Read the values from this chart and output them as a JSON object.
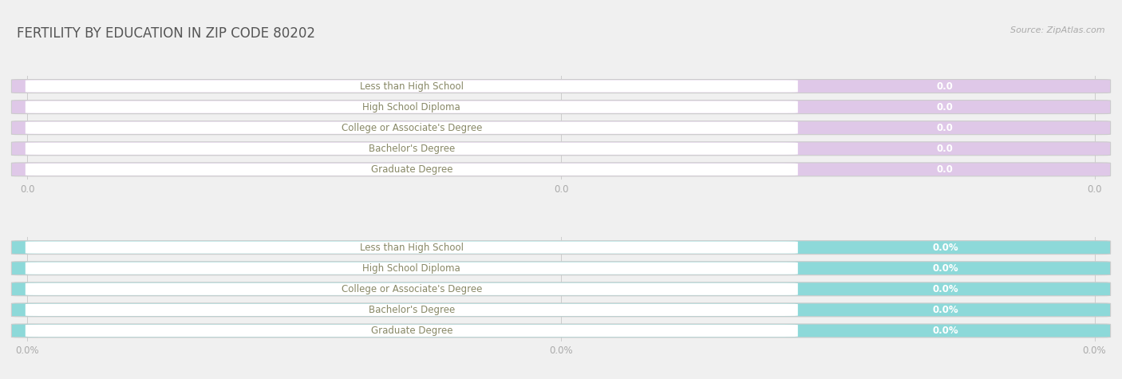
{
  "title": "FERTILITY BY EDUCATION IN ZIP CODE 80202",
  "source_text": "Source: ZipAtlas.com",
  "categories": [
    "Less than High School",
    "High School Diploma",
    "College or Associate's Degree",
    "Bachelor's Degree",
    "Graduate Degree"
  ],
  "top_values": [
    0.0,
    0.0,
    0.0,
    0.0,
    0.0
  ],
  "bottom_values": [
    0.0,
    0.0,
    0.0,
    0.0,
    0.0
  ],
  "top_bar_color": "#c9a8d4",
  "top_bar_bg": "#dfc8e8",
  "top_label_color": "#ffffff",
  "bottom_bar_color": "#5bbfbf",
  "bottom_bar_bg": "#8dd9d9",
  "bottom_label_color": "#ffffff",
  "top_tick_labels": [
    "0.0",
    "0.0",
    "0.0"
  ],
  "bottom_tick_labels": [
    "0.0%",
    "0.0%",
    "0.0%"
  ],
  "bg_color": "#f0f0f0",
  "row_bg_color": "#ffffff",
  "row_border_color": "#cccccc",
  "title_color": "#555555",
  "label_text_color": "#888866",
  "tick_color": "#aaaaaa",
  "bar_value_fontsize": 8.5,
  "label_fontsize": 8.5,
  "title_fontsize": 12
}
